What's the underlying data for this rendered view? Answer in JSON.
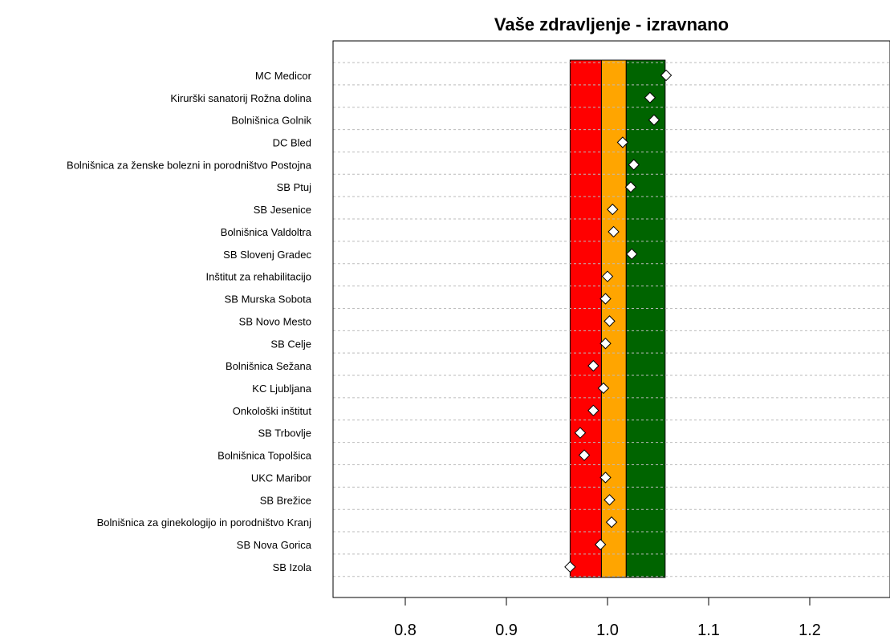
{
  "chart_data": {
    "type": "scatter",
    "title": "Vaše zdravljenje - izravnano",
    "xlabel": "",
    "ylabel": "",
    "xlim": [
      0.735,
      1.27
    ],
    "x_ticks": [
      0.8,
      0.9,
      1.0,
      1.1,
      1.2
    ],
    "x_tick_labels": [
      "0.8",
      "0.9",
      "1.0",
      "1.1",
      "1.2"
    ],
    "grid": "dashed horizontal",
    "bands": [
      {
        "from": 0.963,
        "to": 0.994,
        "color": "#ff0000"
      },
      {
        "from": 0.994,
        "to": 1.0185,
        "color": "#ffa500"
      },
      {
        "from": 1.0185,
        "to": 1.057,
        "color": "#006400"
      }
    ],
    "categories": [
      "MC Medicor",
      "Kirurški sanatorij Rožna dolina",
      "Bolnišnica Golnik",
      "DC Bled",
      "Bolnišnica za ženske bolezni in porodništvo Postojna",
      "SB Ptuj",
      "SB Jesenice",
      "Bolnišnica Valdoltra",
      "SB Slovenj Gradec",
      "Inštitut za rehabilitacijo",
      "SB Murska Sobota",
      "SB Novo Mesto",
      "SB Celje",
      "Bolnišnica Sežana",
      "KC Ljubljana",
      "Onkološki inštitut",
      "SB Trbovlje",
      "Bolnišnica Topolšica",
      "UKC Maribor",
      "SB Brežice",
      "Bolnišnica za ginekologijo in porodništvo Kranj",
      "SB Nova Gorica",
      "SB Izola"
    ],
    "values": [
      1.058,
      1.042,
      1.046,
      1.015,
      1.026,
      1.023,
      1.005,
      1.006,
      1.024,
      1.0,
      0.998,
      1.002,
      0.998,
      0.986,
      0.996,
      0.986,
      0.973,
      0.977,
      0.998,
      1.002,
      1.004,
      0.993,
      0.963
    ],
    "marker": "diamond",
    "marker_fill": "#ffffff",
    "marker_stroke": "#000000"
  }
}
